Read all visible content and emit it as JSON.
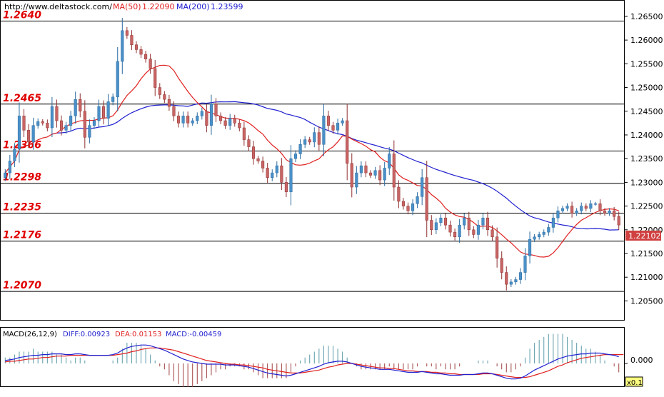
{
  "header": {
    "site": "http://www.deltastock.com/",
    "ma50_label": "MA(50)",
    "ma50_value": "1.22090",
    "ma200_label": "MA(200)",
    "ma200_value": "1.23599"
  },
  "macd_header": {
    "params": "MACD(26,12,9)",
    "diff": "DIFF:0.00923",
    "dea": "DEA:0.01153",
    "macd": "MACD:-0.00459"
  },
  "colors": {
    "up": "#4a90c8",
    "down": "#c86464",
    "ma50": "#e02020",
    "ma200": "#2020d0",
    "level_text": "#e00000",
    "macd_hist_pos": "#5a9aa8",
    "macd_hist_neg": "#a04040"
  },
  "chart_data": {
    "type": "candlestick",
    "ylim": [
      1.201,
      1.2683
    ],
    "y_ticks": [
      "1.26500",
      "1.26000",
      "1.25500",
      "1.25000",
      "1.24500",
      "1.24000",
      "1.23500",
      "1.23000",
      "1.22500",
      "1.22000",
      "1.21500",
      "1.21000",
      "1.20500"
    ],
    "last_price": "1.22102",
    "levels": [
      {
        "label": "1.2640",
        "value": 1.264
      },
      {
        "label": "1.2465",
        "value": 1.2465
      },
      {
        "label": "1.2366",
        "value": 1.2366
      },
      {
        "label": "1.2298",
        "value": 1.2298
      },
      {
        "label": "1.2235",
        "value": 1.2235
      },
      {
        "label": "1.2176",
        "value": 1.2176
      },
      {
        "label": "1.2070",
        "value": 1.207
      }
    ],
    "close": [
      1.232,
      1.2345,
      1.237,
      1.244,
      1.241,
      1.2385,
      1.242,
      1.2428,
      1.2425,
      1.2415,
      1.246,
      1.243,
      1.241,
      1.242,
      1.244,
      1.2475,
      1.245,
      1.2395,
      1.242,
      1.243,
      1.246,
      1.2435,
      1.247,
      1.248,
      1.2555,
      1.262,
      1.261,
      1.259,
      1.258,
      1.257,
      1.256,
      1.254,
      1.25,
      1.2485,
      1.2475,
      1.246,
      1.244,
      1.2425,
      1.244,
      1.2425,
      1.243,
      1.244,
      1.245,
      1.242,
      1.2465,
      1.244,
      1.243,
      1.242,
      1.2435,
      1.2425,
      1.2415,
      1.239,
      1.2375,
      1.235,
      1.2345,
      1.233,
      1.231,
      1.232,
      1.2335,
      1.23,
      1.228,
      1.235,
      1.236,
      1.238,
      1.239,
      1.2385,
      1.2405,
      1.238,
      1.244,
      1.242,
      1.241,
      1.2425,
      1.243,
      1.234,
      1.229,
      1.232,
      1.2335,
      1.232,
      1.2315,
      1.2325,
      1.2305,
      1.233,
      1.236,
      1.229,
      1.226,
      1.225,
      1.224,
      1.2255,
      1.227,
      1.231,
      1.222,
      1.22,
      1.2215,
      1.2225,
      1.221,
      1.2195,
      1.2185,
      1.221,
      1.2225,
      1.22,
      1.219,
      1.221,
      1.2225,
      1.22,
      1.2185,
      1.214,
      1.211,
      1.2085,
      1.209,
      1.2095,
      1.211,
      1.2145,
      1.218,
      1.2185,
      1.219,
      1.2195,
      1.2205,
      1.2225,
      1.224,
      1.2245,
      1.225,
      1.2235,
      1.224,
      1.225,
      1.2245,
      1.2255,
      1.2255,
      1.224,
      1.2235,
      1.224,
      1.2228,
      1.221
    ],
    "macd": {
      "ylim": [
        -0.003,
        0.003
      ],
      "y_tick": "0.000",
      "scale_label": "x0.1",
      "diff": [
        0.0004,
        0.0005,
        0.0006,
        0.0008,
        0.0009,
        0.001,
        0.0011,
        0.0011,
        0.0012,
        0.0012,
        0.0013,
        0.0013,
        0.0013,
        0.0012,
        0.0012,
        0.0013,
        0.0013,
        0.0012,
        0.0011,
        0.0011,
        0.0011,
        0.0011,
        0.0011,
        0.0012,
        0.0014,
        0.0018,
        0.0021,
        0.0023,
        0.0024,
        0.0025,
        0.0025,
        0.0024,
        0.0022,
        0.002,
        0.0018,
        0.0015,
        0.0012,
        0.0009,
        0.0006,
        0.0004,
        0.0002,
        0.0001,
        0.0,
        -0.0001,
        -0.0001,
        -0.0001,
        -0.0001,
        -0.0002,
        -0.0002,
        -0.0002,
        -0.0003,
        -0.0004,
        -0.0005,
        -0.0007,
        -0.0009,
        -0.0011,
        -0.0013,
        -0.0014,
        -0.0015,
        -0.0016,
        -0.0017,
        -0.0016,
        -0.0014,
        -0.0012,
        -0.001,
        -0.0008,
        -0.0006,
        -0.0004,
        -0.0001,
        0.0001,
        0.0002,
        0.0003,
        0.0003,
        0.0002,
        0.0,
        -0.0002,
        -0.0004,
        -0.0005,
        -0.0006,
        -0.0007,
        -0.0008,
        -0.0008,
        -0.0008,
        -0.0009,
        -0.001,
        -0.0011,
        -0.0012,
        -0.0012,
        -0.0012,
        -0.0011,
        -0.0012,
        -0.0013,
        -0.0014,
        -0.0014,
        -0.0015,
        -0.0016,
        -0.0016,
        -0.0016,
        -0.0015,
        -0.0015,
        -0.0015,
        -0.0014,
        -0.0013,
        -0.0013,
        -0.0014,
        -0.0016,
        -0.0018,
        -0.002,
        -0.0021,
        -0.0021,
        -0.002,
        -0.0017,
        -0.0013,
        -0.0009,
        -0.0006,
        -0.0003,
        0.0,
        0.0003,
        0.0006,
        0.0008,
        0.001,
        0.0011,
        0.0012,
        0.0013,
        0.0013,
        0.0014,
        0.0014,
        0.0014,
        0.0013,
        0.0012,
        0.0011,
        0.0009
      ],
      "dea": [
        0.0002,
        0.0003,
        0.0003,
        0.0004,
        0.0005,
        0.0006,
        0.0006,
        0.0007,
        0.0008,
        0.0008,
        0.0009,
        0.001,
        0.001,
        0.001,
        0.0011,
        0.0011,
        0.0011,
        0.0011,
        0.0011,
        0.0011,
        0.0011,
        0.0011,
        0.0011,
        0.0011,
        0.0012,
        0.0013,
        0.0014,
        0.0016,
        0.0017,
        0.0019,
        0.002,
        0.0021,
        0.0021,
        0.0021,
        0.002,
        0.0019,
        0.0018,
        0.0016,
        0.0014,
        0.0012,
        0.001,
        0.0008,
        0.0006,
        0.0004,
        0.0003,
        0.0002,
        0.0001,
        0.0,
        -0.0001,
        -0.0001,
        -0.0002,
        -0.0002,
        -0.0003,
        -0.0004,
        -0.0005,
        -0.0006,
        -0.0008,
        -0.0009,
        -0.001,
        -0.0011,
        -0.0012,
        -0.0013,
        -0.0013,
        -0.0013,
        -0.0012,
        -0.0011,
        -0.001,
        -0.0009,
        -0.0007,
        -0.0005,
        -0.0004,
        -0.0002,
        -0.0001,
        0.0,
        0.0,
        -0.0001,
        -0.0002,
        -0.0003,
        -0.0004,
        -0.0005,
        -0.0006,
        -0.0006,
        -0.0007,
        -0.0007,
        -0.0008,
        -0.0009,
        -0.001,
        -0.001,
        -0.0011,
        -0.0011,
        -0.0011,
        -0.0012,
        -0.0012,
        -0.0013,
        -0.0013,
        -0.0014,
        -0.0014,
        -0.0015,
        -0.0015,
        -0.0015,
        -0.0015,
        -0.0015,
        -0.0014,
        -0.0014,
        -0.0014,
        -0.0015,
        -0.0016,
        -0.0017,
        -0.0018,
        -0.0019,
        -0.0019,
        -0.0019,
        -0.0018,
        -0.0016,
        -0.0014,
        -0.0012,
        -0.001,
        -0.0007,
        -0.0004,
        -0.0002,
        0.0001,
        0.0003,
        0.0005,
        0.0007,
        0.0008,
        0.0009,
        0.001,
        0.0011,
        0.0012,
        0.0012,
        0.0012,
        0.0012,
        0.0012
      ]
    }
  }
}
